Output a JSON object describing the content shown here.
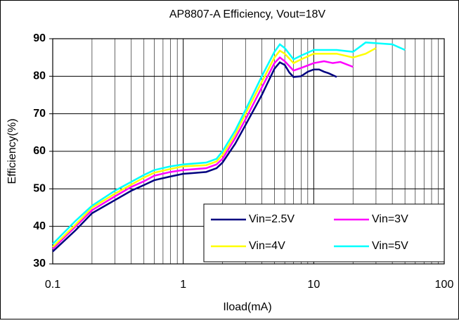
{
  "chart_data": {
    "type": "line",
    "title": "AP8807-A  Efficiency, Vout=18V",
    "xlabel": "Iload(mA)",
    "ylabel": "Efficiency(%)",
    "xscale": "log",
    "xlim": [
      0.1,
      100
    ],
    "xticks": [
      0.1,
      1,
      10,
      100
    ],
    "xminor": [
      0.2,
      0.3,
      0.4,
      0.5,
      0.6,
      0.7,
      0.8,
      0.9,
      2,
      3,
      4,
      5,
      6,
      7,
      8,
      9,
      20,
      30,
      40,
      50,
      60,
      70,
      80,
      90
    ],
    "ylim": [
      30,
      90
    ],
    "yticks": [
      30,
      40,
      50,
      60,
      70,
      80,
      90
    ],
    "grid": true,
    "legend": "lower right",
    "series": [
      {
        "name": "Vin=2.5V",
        "color": "#000080",
        "x": [
          0.1,
          0.15,
          0.2,
          0.3,
          0.4,
          0.5,
          0.6,
          0.8,
          1,
          1.2,
          1.5,
          1.8,
          2,
          2.5,
          3,
          4,
          5,
          5.5,
          6,
          6.5,
          7,
          8,
          9,
          10,
          11,
          12,
          13,
          15
        ],
        "values": [
          33.3,
          39,
          43.5,
          47,
          49.5,
          51,
          52.3,
          53.3,
          54,
          54.2,
          54.5,
          55.5,
          57,
          62,
          67,
          75,
          82,
          83.7,
          83,
          81,
          79.8,
          80,
          81.2,
          81.8,
          81.8,
          81.2,
          80.8,
          79.8
        ]
      },
      {
        "name": "Vin=3V",
        "color": "#FF00FF",
        "x": [
          0.1,
          0.15,
          0.2,
          0.3,
          0.4,
          0.5,
          0.6,
          0.8,
          1,
          1.5,
          1.8,
          2,
          2.5,
          3,
          4,
          5,
          5.5,
          6,
          7,
          8,
          10,
          12,
          14,
          16,
          20
        ],
        "values": [
          34,
          40,
          44.3,
          48,
          50.5,
          52,
          53.5,
          54.5,
          55,
          55.5,
          56.5,
          58,
          63.5,
          68.5,
          77,
          83.5,
          85,
          84,
          81.5,
          82.2,
          83.5,
          84,
          83.5,
          83.8,
          82.5
        ]
      },
      {
        "name": "Vin=4V",
        "color": "#FFFF00",
        "x": [
          0.1,
          0.15,
          0.2,
          0.3,
          0.5,
          0.6,
          0.8,
          1,
          1.5,
          1.8,
          2,
          2.5,
          3,
          4,
          5,
          5.5,
          6,
          7,
          8,
          10,
          15,
          20,
          25,
          30
        ],
        "values": [
          34.5,
          40.5,
          45,
          48.7,
          53,
          54.3,
          55.3,
          56,
          56.3,
          57.3,
          59,
          64.5,
          70,
          78.5,
          85,
          86.8,
          86,
          83.5,
          84.5,
          86,
          86,
          85,
          86,
          87.5
        ]
      },
      {
        "name": "Vin=5V",
        "color": "#00FFFF",
        "x": [
          0.1,
          0.15,
          0.2,
          0.3,
          0.5,
          0.6,
          0.8,
          1,
          1.5,
          1.8,
          2,
          2.5,
          3,
          4,
          5,
          5.5,
          6,
          7,
          8,
          10,
          15,
          20,
          25,
          30,
          40,
          50
        ],
        "values": [
          35.3,
          41.5,
          45.5,
          49.5,
          53.7,
          55,
          56,
          56.5,
          57,
          58,
          60,
          65.5,
          71,
          80,
          86.5,
          88.5,
          87.5,
          84.5,
          85.5,
          87,
          87,
          86.5,
          89,
          88.8,
          88.5,
          87
        ]
      }
    ]
  }
}
